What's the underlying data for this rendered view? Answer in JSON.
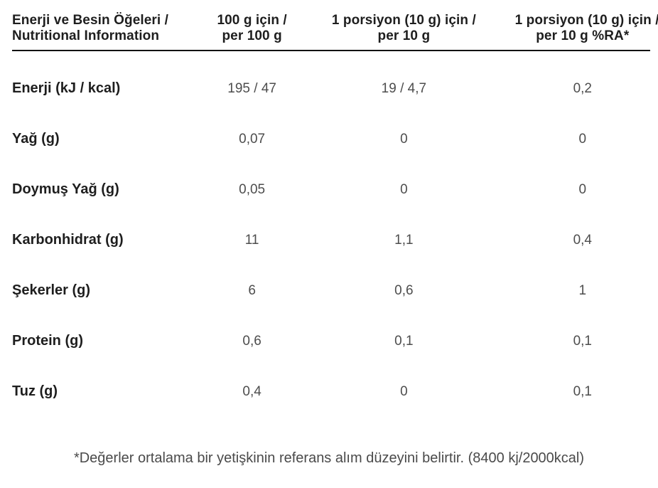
{
  "table": {
    "header": {
      "col_nutrients": {
        "line1": "Enerji ve Besin Öğeleri /",
        "line2": "Nutritional Information"
      },
      "col_per_100g": {
        "line1": "100 g için /",
        "line2": "per 100 g"
      },
      "col_per_10g": {
        "line1": "1 porsiyon (10 g) için /",
        "line2": "per 10 g"
      },
      "col_ra_percent": {
        "line1": "1 porsiyon (10 g) için /",
        "line2": "per 10 g %RA*"
      }
    },
    "rows": [
      {
        "label": "Enerji (kJ / kcal)",
        "per_100g": "195 / 47",
        "per_10g": "19 / 4,7",
        "ra_percent": "0,2"
      },
      {
        "label": "Yağ (g)",
        "per_100g": "0,07",
        "per_10g": "0",
        "ra_percent": "0"
      },
      {
        "label": "Doymuş Yağ (g)",
        "per_100g": "0,05",
        "per_10g": "0",
        "ra_percent": "0"
      },
      {
        "label": "Karbonhidrat (g)",
        "per_100g": "11",
        "per_10g": "1,1",
        "ra_percent": "0,4"
      },
      {
        "label": "Şekerler (g)",
        "per_100g": "6",
        "per_10g": "0,6",
        "ra_percent": "1"
      },
      {
        "label": "Protein (g)",
        "per_100g": "0,6",
        "per_10g": "0,1",
        "ra_percent": "0,1"
      },
      {
        "label": "Tuz (g)",
        "per_100g": "0,4",
        "per_10g": "0",
        "ra_percent": "0,1"
      }
    ],
    "footnote": "*Değerler ortalama bir yetişkinin referans alım düzeyini belirtir. (8400 kj/2000kcal)"
  },
  "colors": {
    "header_rule": "#111111",
    "label_text": "#1e1e1e",
    "value_text": "#4d4d4d",
    "background": "#ffffff"
  }
}
